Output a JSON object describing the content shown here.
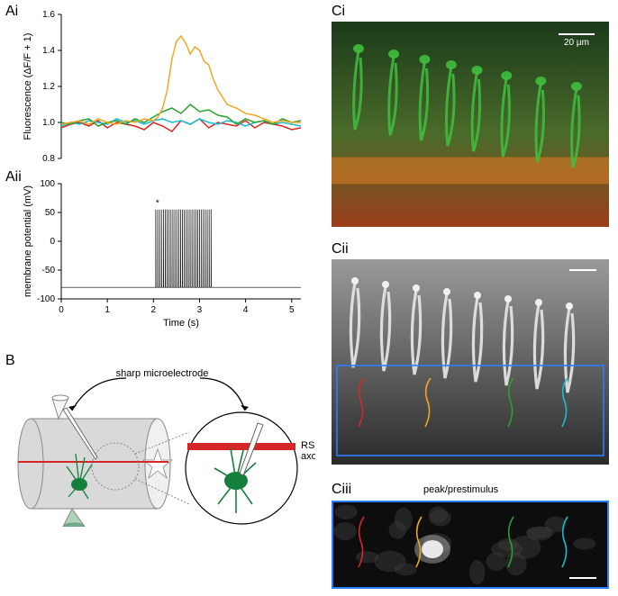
{
  "panelAi": {
    "label": "Ai",
    "type": "line",
    "ylabel": "Fluorescence (ΔF/F + 1)",
    "ylim": [
      0.8,
      1.6
    ],
    "ytick_step": 0.2,
    "xlim": [
      0,
      5.2
    ],
    "background_color": "#ffffff",
    "label_fontsize": 11,
    "tick_fontsize": 10,
    "line_width": 1.5,
    "series": {
      "orange": {
        "color": "#f5a623",
        "x": [
          0,
          0.2,
          0.4,
          0.6,
          0.8,
          1.0,
          1.2,
          1.4,
          1.6,
          1.8,
          2.0,
          2.1,
          2.2,
          2.3,
          2.4,
          2.5,
          2.6,
          2.7,
          2.8,
          2.9,
          3.0,
          3.1,
          3.2,
          3.3,
          3.4,
          3.5,
          3.6,
          3.8,
          4.0,
          4.2,
          4.4,
          4.6,
          4.8,
          5.0,
          5.2
        ],
        "y": [
          0.99,
          1.0,
          1.01,
          0.99,
          1.02,
          1.0,
          0.99,
          1.01,
          1.0,
          1.02,
          1.01,
          1.03,
          1.08,
          1.18,
          1.35,
          1.45,
          1.48,
          1.44,
          1.38,
          1.42,
          1.4,
          1.34,
          1.32,
          1.24,
          1.18,
          1.14,
          1.1,
          1.08,
          1.05,
          1.04,
          1.02,
          1.0,
          1.01,
          1.0,
          1.0
        ]
      },
      "green": {
        "color": "#2ca02c",
        "x": [
          0,
          0.2,
          0.4,
          0.6,
          0.8,
          1.0,
          1.2,
          1.4,
          1.6,
          1.8,
          2.0,
          2.2,
          2.4,
          2.6,
          2.8,
          3.0,
          3.2,
          3.4,
          3.6,
          3.8,
          4.0,
          4.2,
          4.4,
          4.6,
          4.8,
          5.0,
          5.2
        ],
        "y": [
          1.0,
          0.99,
          1.01,
          1.02,
          0.98,
          1.0,
          1.01,
          0.99,
          1.02,
          1.0,
          1.03,
          1.06,
          1.08,
          1.05,
          1.1,
          1.06,
          1.07,
          1.04,
          1.03,
          0.99,
          1.02,
          1.0,
          1.01,
          0.99,
          1.02,
          1.0,
          1.01
        ]
      },
      "cyan": {
        "color": "#17becf",
        "x": [
          0,
          0.2,
          0.4,
          0.6,
          0.8,
          1.0,
          1.2,
          1.4,
          1.6,
          1.8,
          2.0,
          2.2,
          2.4,
          2.6,
          2.8,
          3.0,
          3.2,
          3.4,
          3.6,
          3.8,
          4.0,
          4.2,
          4.4,
          4.6,
          4.8,
          5.0,
          5.2
        ],
        "y": [
          0.98,
          1.0,
          0.99,
          1.01,
          1.0,
          0.99,
          1.02,
          1.0,
          1.01,
          0.99,
          1.01,
          1.02,
          1.0,
          1.01,
          0.99,
          1.02,
          1.0,
          0.99,
          1.01,
          1.0,
          0.98,
          1.0,
          1.01,
          0.99,
          1.0,
          0.99,
          0.98
        ]
      },
      "red": {
        "color": "#d62728",
        "x": [
          0,
          0.2,
          0.4,
          0.6,
          0.8,
          1.0,
          1.2,
          1.4,
          1.6,
          1.8,
          2.0,
          2.2,
          2.4,
          2.6,
          2.8,
          3.0,
          3.2,
          3.4,
          3.6,
          3.8,
          4.0,
          4.2,
          4.4,
          4.6,
          4.8,
          5.0,
          5.2
        ],
        "y": [
          0.97,
          0.99,
          1.0,
          0.98,
          1.01,
          0.97,
          1.0,
          0.99,
          0.98,
          0.96,
          1.0,
          0.98,
          0.95,
          1.01,
          0.99,
          1.02,
          0.97,
          1.0,
          0.99,
          0.98,
          1.01,
          0.97,
          1.0,
          0.99,
          0.98,
          0.96,
          0.97
        ]
      }
    }
  },
  "panelAii": {
    "label": "Aii",
    "type": "line",
    "xlabel": "Time (s)",
    "ylabel": "membrane potential (mV)",
    "ylim": [
      -100,
      100
    ],
    "ytick_step": 50,
    "xlim": [
      0,
      5.2
    ],
    "xtick_step": 1,
    "background_color": "#ffffff",
    "label_fontsize": 11,
    "tick_fontsize": 10,
    "line_color": "#000000",
    "line_width": 0.7,
    "baseline_mV": -80,
    "spike_peak_mV": 55,
    "spike_train_start_s": 2.05,
    "spike_train_end_s": 3.25,
    "spike_count": 30,
    "asterisk_label": "*",
    "asterisk_x": 2.05,
    "asterisk_y": 62
  },
  "panelB": {
    "label": "B",
    "type": "diagram",
    "annotation_text": "sharp microelectrode",
    "annotation_fontsize": 11,
    "rs_axon_label": "RS\naxon",
    "rs_axon_fontsize": 11,
    "colors": {
      "cylinder_fill": "#d9d9d9",
      "cylinder_edge": "#888888",
      "cell_body": "#15803d",
      "axon": "#d62728",
      "electrode": "#555555",
      "circle_outline": "#000000"
    }
  },
  "panelCi": {
    "label": "Ci",
    "type": "fluorescence-image",
    "scalebar_label": "20 µm",
    "scalebar_color": "#ffffff",
    "scalebar_fontsize": 10,
    "colors": {
      "background_top": "#1a3a1a",
      "background_bottom": "#9c3d1a",
      "green_signal": "#3fbf3f",
      "orange_signal": "#e67e22"
    }
  },
  "panelCii": {
    "label": "Cii",
    "type": "grayscale-image",
    "scalebar_color": "#ffffff",
    "box_color": "#2a7fff",
    "roi_colors": {
      "red": "#d62728",
      "orange": "#f5a623",
      "green": "#2ca02c",
      "cyan": "#17becf"
    },
    "background_gradient_top": "#9a9a9a",
    "background_gradient_bottom": "#2a2a2a"
  },
  "panelCiii": {
    "label": "Ciii",
    "title": "peak/prestimulus",
    "title_fontsize": 11,
    "type": "grayscale-image",
    "box_color": "#2a7fff",
    "scalebar_color": "#ffffff",
    "roi_colors": {
      "red": "#d62728",
      "orange": "#f5a623",
      "green": "#2ca02c",
      "cyan": "#17becf"
    },
    "background_color": "#0d0d0d",
    "hotspot_color": "#e8e8e8"
  }
}
